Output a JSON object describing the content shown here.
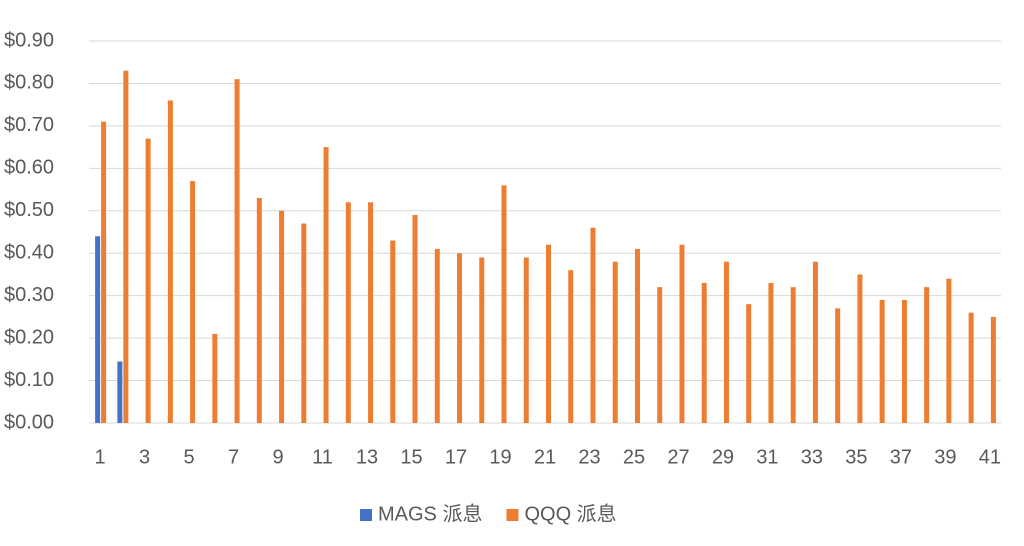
{
  "chart_data": {
    "type": "bar",
    "categories": [
      "1",
      null,
      "3",
      null,
      "5",
      null,
      "7",
      null,
      "9",
      null,
      "11",
      null,
      "13",
      null,
      "15",
      null,
      "17",
      null,
      "19",
      null,
      "21",
      null,
      "23",
      null,
      "25",
      null,
      "27",
      null,
      "29",
      null,
      "31",
      null,
      "33",
      null,
      "35",
      null,
      "37",
      null,
      "39",
      null,
      "41"
    ],
    "series": [
      {
        "name": "MAGS 派息",
        "color": "#4472c4",
        "values": [
          0.44,
          0.145,
          null,
          null,
          null,
          null,
          null,
          null,
          null,
          null,
          null,
          null,
          null,
          null,
          null,
          null,
          null,
          null,
          null,
          null,
          null,
          null,
          null,
          null,
          null,
          null,
          null,
          null,
          null,
          null,
          null,
          null,
          null,
          null,
          null,
          null,
          null,
          null,
          null,
          null,
          null
        ]
      },
      {
        "name": "QQQ 派息",
        "color": "#ed7d31",
        "values": [
          0.71,
          0.83,
          0.67,
          0.76,
          0.57,
          0.21,
          0.81,
          0.53,
          0.5,
          0.47,
          0.65,
          0.52,
          0.52,
          0.43,
          0.49,
          0.41,
          0.4,
          0.39,
          0.56,
          0.39,
          0.42,
          0.36,
          0.46,
          0.38,
          0.41,
          0.32,
          0.42,
          0.33,
          0.38,
          0.28,
          0.33,
          0.32,
          0.38,
          0.27,
          0.35,
          0.29,
          0.29,
          0.32,
          0.34,
          0.26,
          0.25
        ]
      }
    ],
    "ylim": [
      0,
      0.9
    ],
    "yticks": [
      {
        "value": 0,
        "label": "$0.00"
      },
      {
        "value": 0.1,
        "label": "$0.10"
      },
      {
        "value": 0.2,
        "label": "$0.20"
      },
      {
        "value": 0.3,
        "label": "$0.30"
      },
      {
        "value": 0.4,
        "label": "$0.40"
      },
      {
        "value": 0.5,
        "label": "$0.50"
      },
      {
        "value": 0.6,
        "label": "$0.60"
      },
      {
        "value": 0.7,
        "label": "$0.70"
      },
      {
        "value": 0.8,
        "label": "$0.80"
      },
      {
        "value": 0.9,
        "label": "$0.90"
      }
    ],
    "grid": true,
    "legend": "bottom"
  }
}
